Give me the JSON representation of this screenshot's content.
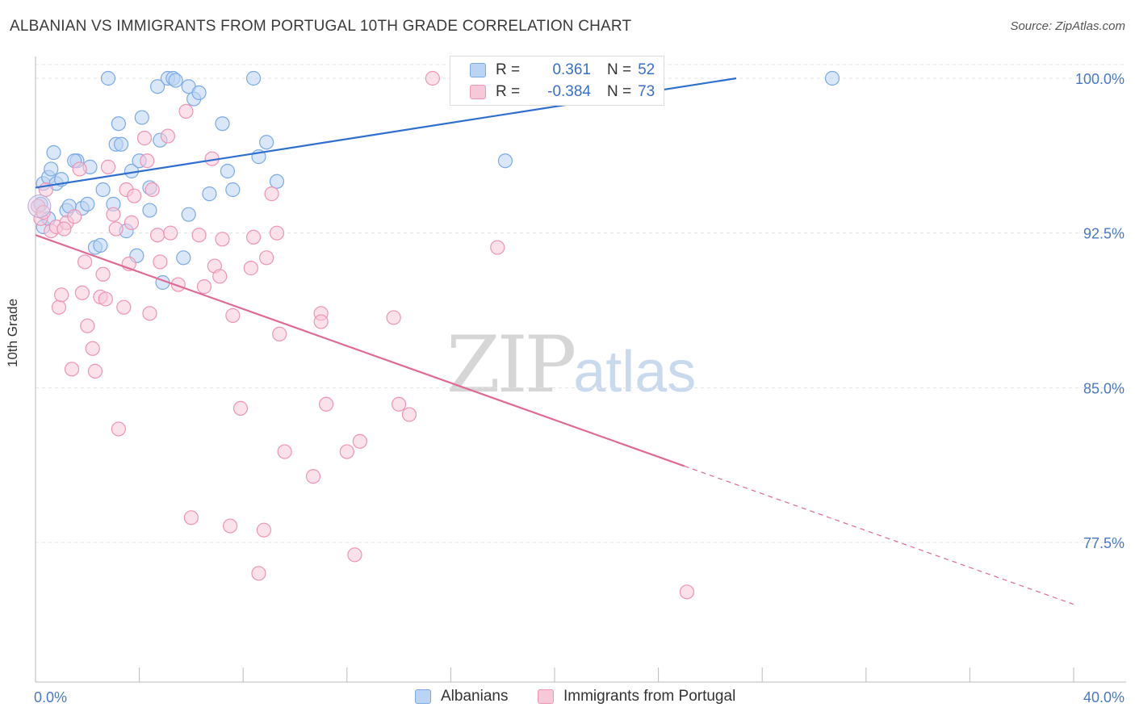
{
  "title": "ALBANIAN VS IMMIGRANTS FROM PORTUGAL 10TH GRADE CORRELATION CHART",
  "source": "Source: ZipAtlas.com",
  "watermark": {
    "zip": "ZIP",
    "atlas": "atlas"
  },
  "legend_top": {
    "rows": [
      {
        "r_label": "R =",
        "r_value": "0.361",
        "n_label": "N =",
        "n_value": "52",
        "color": "#7aaae6",
        "fill": "#bcd4f3",
        "value_color": "#3a6fc8"
      },
      {
        "r_label": "R =",
        "r_value": "-0.384",
        "n_label": "N =",
        "n_value": "73",
        "color": "#ee94b4",
        "fill": "#f7c9d8",
        "value_color": "#3a6fc8"
      }
    ]
  },
  "legend_bottom": [
    {
      "label": "Albanians",
      "color": "#7aaae6",
      "fill": "#bcd4f3"
    },
    {
      "label": "Immigrants from Portugal",
      "color": "#ee94b4",
      "fill": "#f7c9d8"
    }
  ],
  "chart_data": {
    "type": "scatter",
    "title": "ALBANIAN VS IMMIGRANTS FROM PORTUGAL 10TH GRADE CORRELATION CHART",
    "xlabel": "",
    "ylabel": "10th Grade",
    "xlim": [
      0,
      40
    ],
    "ylim": [
      70.5,
      100.5
    ],
    "x_ticks": [
      0,
      40
    ],
    "x_tick_labels": [
      "0.0%",
      "40.0%"
    ],
    "y_ticks": [
      77.5,
      85.0,
      92.5,
      100.0
    ],
    "y_tick_labels": [
      "77.5%",
      "85.0%",
      "92.5%",
      "100.0%"
    ],
    "grid": "horizontal dashed",
    "series": [
      {
        "name": "Albanians",
        "color": "#7aaae6",
        "fill": "#bcd4f3",
        "trend": {
          "x0": 0.0,
          "y0": 94.7,
          "x1": 27.0,
          "y1": 100.0,
          "style": "solid",
          "color": "#2f6fd0"
        },
        "points": [
          [
            0.2,
            93.9
          ],
          [
            0.3,
            94.9
          ],
          [
            0.3,
            92.8
          ],
          [
            0.5,
            95.2
          ],
          [
            0.6,
            95.6
          ],
          [
            0.8,
            94.9
          ],
          [
            0.7,
            96.4
          ],
          [
            1.2,
            93.6
          ],
          [
            1.3,
            93.8
          ],
          [
            1.6,
            96.0
          ],
          [
            1.5,
            96.0
          ],
          [
            1.8,
            93.7
          ],
          [
            2.0,
            93.9
          ],
          [
            2.1,
            95.7
          ],
          [
            2.3,
            91.8
          ],
          [
            2.5,
            91.9
          ],
          [
            2.6,
            94.6
          ],
          [
            3.0,
            93.9
          ],
          [
            3.1,
            96.8
          ],
          [
            3.2,
            97.8
          ],
          [
            3.3,
            96.8
          ],
          [
            3.5,
            92.6
          ],
          [
            3.7,
            95.5
          ],
          [
            3.9,
            91.4
          ],
          [
            4.0,
            96.0
          ],
          [
            4.1,
            98.1
          ],
          [
            4.4,
            93.6
          ],
          [
            4.4,
            94.7
          ],
          [
            4.7,
            99.6
          ],
          [
            4.9,
            90.1
          ],
          [
            5.1,
            100.0
          ],
          [
            5.3,
            100.0
          ],
          [
            5.4,
            99.9
          ],
          [
            5.9,
            99.6
          ],
          [
            5.7,
            91.3
          ],
          [
            5.9,
            93.4
          ],
          [
            6.1,
            99.0
          ],
          [
            6.3,
            99.3
          ],
          [
            6.7,
            94.4
          ],
          [
            7.2,
            97.8
          ],
          [
            7.4,
            95.5
          ],
          [
            7.6,
            94.6
          ],
          [
            8.4,
            100.0
          ],
          [
            8.6,
            96.2
          ],
          [
            8.9,
            96.9
          ],
          [
            9.3,
            95.0
          ],
          [
            4.8,
            97.0
          ],
          [
            2.8,
            100.0
          ],
          [
            1.0,
            95.1
          ],
          [
            0.5,
            93.2
          ],
          [
            18.1,
            96.0
          ],
          [
            30.7,
            100.0
          ]
        ]
      },
      {
        "name": "Immigrants from Portugal",
        "color": "#ee94b4",
        "fill": "#f7c9d8",
        "trend": {
          "x0": 0.0,
          "y0": 92.4,
          "x1": 25.0,
          "y1": 81.2,
          "x2": 40.0,
          "y2": 74.5,
          "style": "solid-then-dashed",
          "color": "#e06a96"
        },
        "points": [
          [
            0.1,
            93.8
          ],
          [
            0.2,
            93.2
          ],
          [
            0.4,
            94.6
          ],
          [
            0.6,
            92.6
          ],
          [
            0.8,
            92.8
          ],
          [
            0.9,
            88.9
          ],
          [
            1.0,
            89.5
          ],
          [
            1.2,
            93.0
          ],
          [
            1.4,
            85.9
          ],
          [
            1.5,
            93.3
          ],
          [
            1.7,
            95.6
          ],
          [
            1.8,
            89.6
          ],
          [
            1.9,
            91.1
          ],
          [
            2.0,
            88.0
          ],
          [
            2.2,
            86.9
          ],
          [
            2.3,
            85.8
          ],
          [
            2.5,
            89.4
          ],
          [
            2.6,
            90.5
          ],
          [
            2.7,
            89.3
          ],
          [
            2.8,
            95.7
          ],
          [
            3.0,
            93.4
          ],
          [
            3.1,
            92.7
          ],
          [
            3.2,
            83.0
          ],
          [
            3.4,
            88.9
          ],
          [
            3.5,
            94.6
          ],
          [
            3.6,
            91.0
          ],
          [
            3.7,
            93.0
          ],
          [
            3.8,
            94.3
          ],
          [
            4.2,
            97.1
          ],
          [
            4.3,
            96.0
          ],
          [
            4.4,
            88.6
          ],
          [
            4.5,
            94.6
          ],
          [
            4.7,
            92.4
          ],
          [
            4.8,
            91.1
          ],
          [
            5.1,
            97.2
          ],
          [
            5.2,
            92.5
          ],
          [
            5.5,
            90.0
          ],
          [
            5.8,
            98.4
          ],
          [
            6.0,
            78.7
          ],
          [
            6.3,
            92.4
          ],
          [
            6.5,
            89.9
          ],
          [
            6.8,
            96.1
          ],
          [
            6.9,
            90.9
          ],
          [
            7.1,
            90.4
          ],
          [
            7.2,
            92.2
          ],
          [
            7.5,
            78.3
          ],
          [
            7.6,
            88.5
          ],
          [
            7.9,
            84.0
          ],
          [
            8.3,
            90.8
          ],
          [
            8.4,
            92.3
          ],
          [
            8.6,
            76.0
          ],
          [
            8.8,
            78.1
          ],
          [
            8.9,
            91.3
          ],
          [
            9.1,
            94.4
          ],
          [
            9.3,
            92.5
          ],
          [
            9.4,
            87.6
          ],
          [
            9.6,
            81.9
          ],
          [
            10.7,
            80.7
          ],
          [
            11.0,
            88.6
          ],
          [
            11.0,
            88.2
          ],
          [
            11.2,
            84.2
          ],
          [
            12.0,
            81.9
          ],
          [
            12.3,
            76.9
          ],
          [
            12.5,
            82.4
          ],
          [
            13.8,
            88.4
          ],
          [
            14.0,
            84.2
          ],
          [
            14.4,
            83.7
          ],
          [
            15.3,
            100.0
          ],
          [
            16.6,
            100.0
          ],
          [
            17.8,
            91.8
          ],
          [
            25.1,
            75.1
          ],
          [
            0.3,
            93.5
          ],
          [
            1.1,
            92.7
          ]
        ]
      }
    ]
  }
}
